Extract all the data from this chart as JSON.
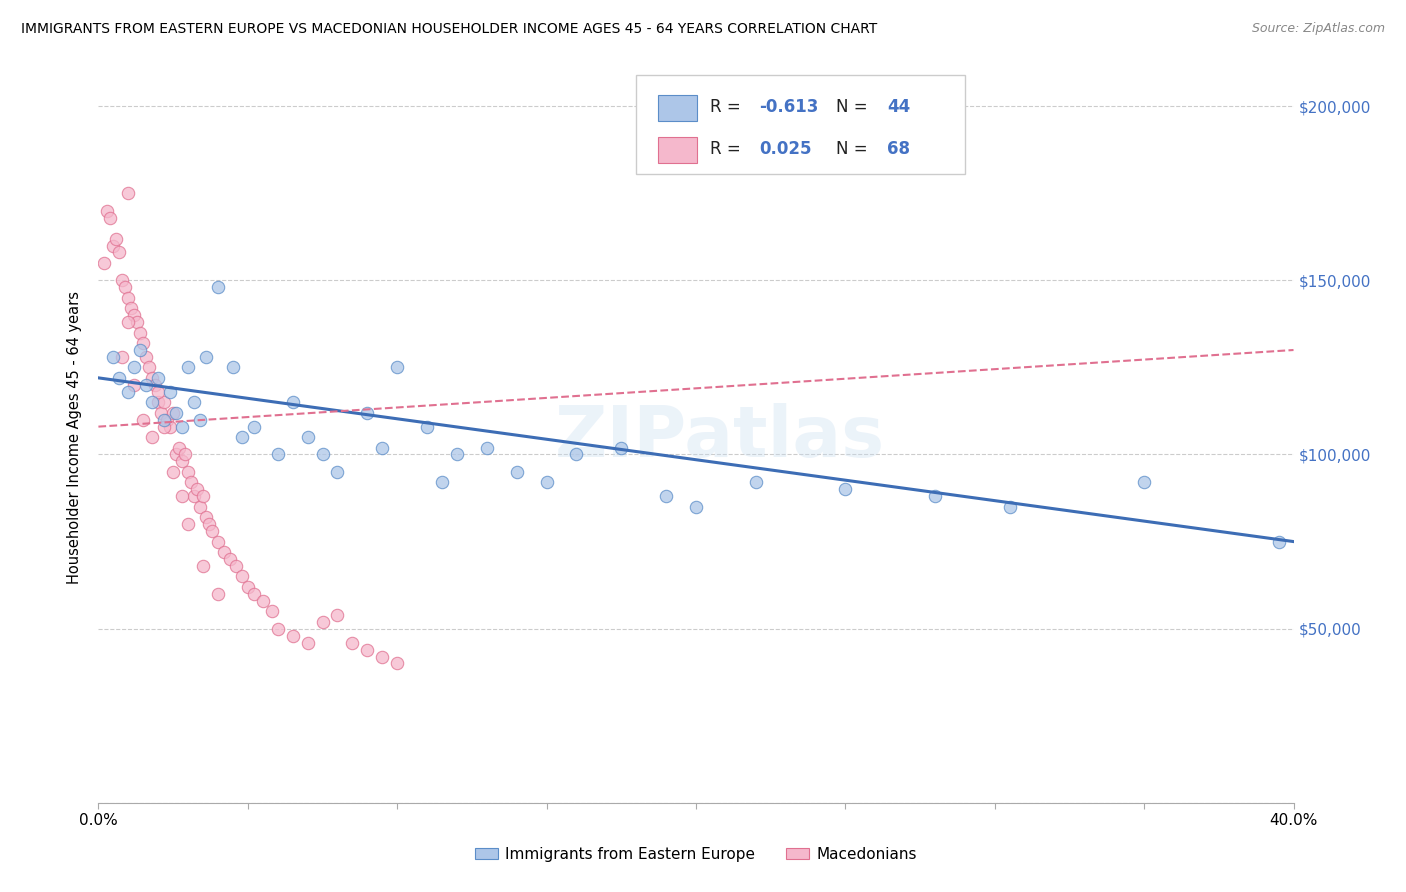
{
  "title": "IMMIGRANTS FROM EASTERN EUROPE VS MACEDONIAN HOUSEHOLDER INCOME AGES 45 - 64 YEARS CORRELATION CHART",
  "source": "Source: ZipAtlas.com",
  "ylabel": "Householder Income Ages 45 - 64 years",
  "xlim": [
    0.0,
    0.4
  ],
  "ylim": [
    0,
    210000
  ],
  "yticks": [
    0,
    50000,
    100000,
    150000,
    200000
  ],
  "ytick_labels": [
    "",
    "$50,000",
    "$100,000",
    "$150,000",
    "$200,000"
  ],
  "xticks": [
    0.0,
    0.05,
    0.1,
    0.15,
    0.2,
    0.25,
    0.3,
    0.35,
    0.4
  ],
  "series1_label": "Immigrants from Eastern Europe",
  "series1_R": "-0.613",
  "series1_N": "44",
  "series1_color": "#adc6e8",
  "series1_edge_color": "#5b8dc8",
  "series1_line_color": "#3d6db5",
  "series2_label": "Macedonians",
  "series2_R": "0.025",
  "series2_N": "68",
  "series2_color": "#f5b8cc",
  "series2_edge_color": "#e07090",
  "series2_line_color": "#e07090",
  "watermark": "ZIPatlas",
  "blue_trend_x0": 0.0,
  "blue_trend_y0": 122000,
  "blue_trend_x1": 0.4,
  "blue_trend_y1": 75000,
  "pink_trend_x0": 0.0,
  "pink_trend_y0": 108000,
  "pink_trend_x1": 0.4,
  "pink_trend_y1": 130000,
  "blue_x": [
    0.005,
    0.007,
    0.01,
    0.012,
    0.014,
    0.016,
    0.018,
    0.02,
    0.022,
    0.024,
    0.026,
    0.028,
    0.03,
    0.032,
    0.034,
    0.036,
    0.04,
    0.045,
    0.048,
    0.052,
    0.06,
    0.065,
    0.07,
    0.075,
    0.08,
    0.09,
    0.095,
    0.1,
    0.11,
    0.115,
    0.12,
    0.13,
    0.14,
    0.15,
    0.16,
    0.175,
    0.19,
    0.2,
    0.22,
    0.25,
    0.28,
    0.305,
    0.35,
    0.395
  ],
  "blue_y": [
    128000,
    122000,
    118000,
    125000,
    130000,
    120000,
    115000,
    122000,
    110000,
    118000,
    112000,
    108000,
    125000,
    115000,
    110000,
    128000,
    148000,
    125000,
    105000,
    108000,
    100000,
    115000,
    105000,
    100000,
    95000,
    112000,
    102000,
    125000,
    108000,
    92000,
    100000,
    102000,
    95000,
    92000,
    100000,
    102000,
    88000,
    85000,
    92000,
    90000,
    88000,
    85000,
    92000,
    75000
  ],
  "blue_size": 80,
  "pink_x": [
    0.002,
    0.003,
    0.004,
    0.005,
    0.006,
    0.007,
    0.008,
    0.009,
    0.01,
    0.01,
    0.011,
    0.012,
    0.013,
    0.014,
    0.015,
    0.016,
    0.017,
    0.018,
    0.019,
    0.02,
    0.021,
    0.022,
    0.023,
    0.024,
    0.025,
    0.026,
    0.027,
    0.028,
    0.029,
    0.03,
    0.031,
    0.032,
    0.033,
    0.034,
    0.035,
    0.036,
    0.037,
    0.038,
    0.04,
    0.042,
    0.044,
    0.046,
    0.048,
    0.05,
    0.052,
    0.055,
    0.058,
    0.06,
    0.065,
    0.07,
    0.075,
    0.08,
    0.085,
    0.09,
    0.095,
    0.1,
    0.008,
    0.01,
    0.012,
    0.015,
    0.018,
    0.02,
    0.022,
    0.025,
    0.028,
    0.03,
    0.035,
    0.04
  ],
  "pink_y": [
    155000,
    170000,
    168000,
    160000,
    162000,
    158000,
    150000,
    148000,
    145000,
    175000,
    142000,
    140000,
    138000,
    135000,
    132000,
    128000,
    125000,
    122000,
    120000,
    115000,
    112000,
    115000,
    110000,
    108000,
    112000,
    100000,
    102000,
    98000,
    100000,
    95000,
    92000,
    88000,
    90000,
    85000,
    88000,
    82000,
    80000,
    78000,
    75000,
    72000,
    70000,
    68000,
    65000,
    62000,
    60000,
    58000,
    55000,
    50000,
    48000,
    46000,
    52000,
    54000,
    46000,
    44000,
    42000,
    40000,
    128000,
    138000,
    120000,
    110000,
    105000,
    118000,
    108000,
    95000,
    88000,
    80000,
    68000,
    60000
  ],
  "pink_size": 80
}
